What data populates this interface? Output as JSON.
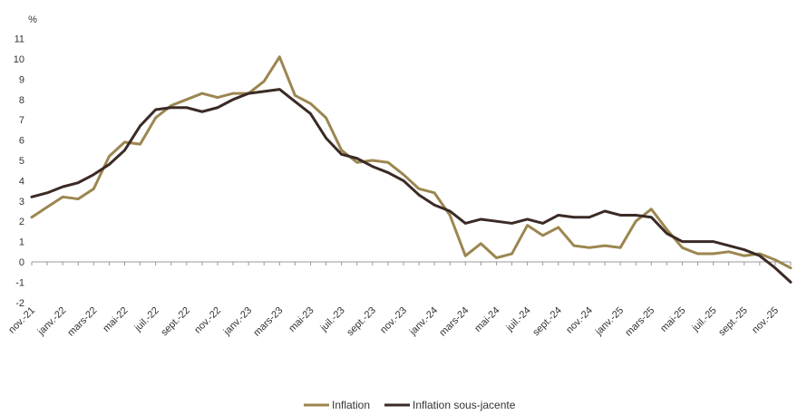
{
  "chart_data": {
    "type": "line",
    "ylabel": "%",
    "ylim": [
      -2,
      11
    ],
    "yticks": [
      "-2",
      "-1",
      "0",
      "1",
      "2",
      "3",
      "4",
      "5",
      "6",
      "7",
      "8",
      "9",
      "10",
      "11"
    ],
    "tick_labels": [
      "nov.-21",
      "janv.-22",
      "mars-22",
      "mai-22",
      "juil.-22",
      "sept.-22",
      "nov.-22",
      "janv.-23",
      "mars-23",
      "mai-23",
      "juil.-23",
      "sept.-23",
      "nov.-23",
      "janv.-24",
      "mars-24",
      "mai-24",
      "juil.-24",
      "sept.-24",
      "nov.-24",
      "janv.-25",
      "mars-25",
      "mai-25",
      "juil.-25",
      "sept.-25",
      "nov.-25"
    ],
    "legend_position": "bottom",
    "series": [
      {
        "name": "Inflation",
        "color": "#9c8650",
        "values": [
          2.2,
          2.7,
          3.2,
          3.1,
          3.6,
          5.2,
          5.9,
          5.8,
          7.1,
          7.7,
          8.0,
          8.3,
          8.1,
          8.3,
          8.3,
          8.9,
          10.1,
          8.2,
          7.8,
          7.1,
          5.5,
          4.9,
          5.0,
          4.9,
          4.3,
          3.6,
          3.4,
          2.3,
          0.3,
          0.9,
          0.2,
          0.4,
          1.8,
          1.3,
          1.7,
          0.8,
          0.7,
          0.8,
          0.7,
          2.0,
          2.6,
          1.6,
          0.7,
          0.4,
          0.4,
          0.5,
          0.3,
          0.4,
          0.1,
          -0.3
        ]
      },
      {
        "name": "Inflation sous-jacente",
        "color": "#3b2a25",
        "values": [
          3.2,
          3.4,
          3.7,
          3.9,
          4.3,
          4.8,
          5.5,
          6.7,
          7.5,
          7.6,
          7.6,
          7.4,
          7.6,
          8.0,
          8.3,
          8.4,
          8.5,
          7.9,
          7.3,
          6.1,
          5.3,
          5.1,
          4.7,
          4.4,
          4.0,
          3.3,
          2.8,
          2.5,
          1.9,
          2.1,
          2.0,
          1.9,
          2.1,
          1.9,
          2.3,
          2.2,
          2.2,
          2.5,
          2.3,
          2.3,
          2.2,
          1.4,
          1.0,
          1.0,
          1.0,
          0.8,
          0.6,
          0.3,
          -0.3,
          -1.0
        ]
      }
    ]
  }
}
